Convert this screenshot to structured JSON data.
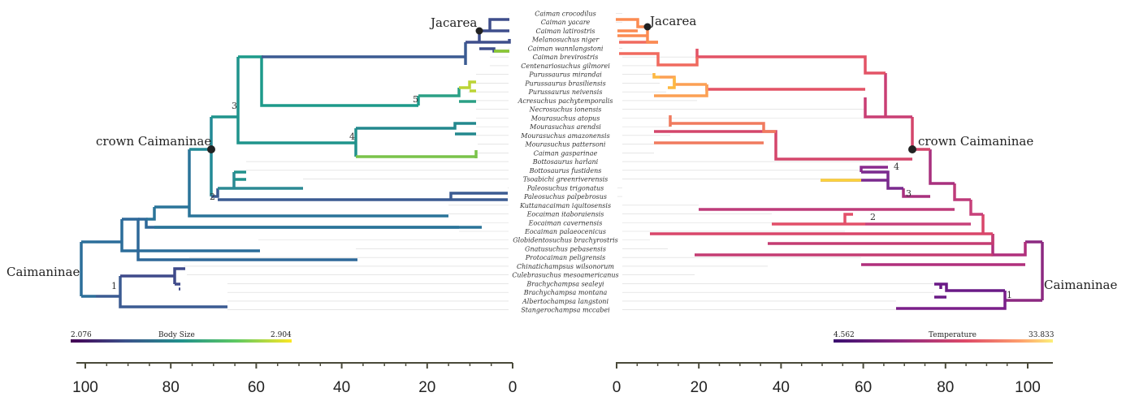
{
  "taxa": [
    "Caiman crocodilus",
    "Caiman yacare",
    "Caiman latirostris",
    "Melanosuchus niger",
    "Caiman wannlangstoni",
    "Caiman brevirostris",
    "Centenariosuchus gilmorei",
    "Purussaurus mirandai",
    "Purussaurus brasiliensis",
    "Purussaurus neivensis",
    "Acresuchus pachytemporalis",
    "Necrosuchus ionensis",
    "Mourasuchus atopus",
    "Mourasuchus arendsi",
    "Mourasuchus amazonensis",
    "Mourasuchus pattersoni",
    "Caiman gasparinae",
    "Bottosaurus harlani",
    "Bottosaurus fustidens",
    "Tsoabichi greenriverensis",
    "Paleosuchus trigonatus",
    "Paleosuchus palpebrosus",
    "Kuttanacaiman iquitosensis",
    "Eocaiman itaboraiensis",
    "Eocaiman cavernensis",
    "Eocaiman palaeocenicus",
    "Globidentosuchus brachyrostris",
    "Gnatusuchus pebasensis",
    "Protocaiman peligrensis",
    "Chinatichampsus wilsonorum",
    "Culebrasuchus mesoamericanus",
    "Brachychampsa sealeyi",
    "Brachychampsa montana",
    "Albertochampsa langstoni",
    "Stangerochampsa mccabei"
  ],
  "clade_labels": {
    "jacarea": "Jacarea",
    "crown": "crown Caimaninae",
    "caimaninae": "Caimaninae"
  },
  "left_tree": {
    "legend_title": "Body Size",
    "legend_min": "2.076",
    "legend_max": "2.904",
    "numbers": [
      "1",
      "2",
      "3",
      "4",
      "5"
    ]
  },
  "right_tree": {
    "legend_title": "Temperature",
    "legend_min": "4.562",
    "legend_max": "33.833",
    "numbers": [
      "1",
      "2",
      "3",
      "4"
    ]
  },
  "left_axis_ticks": [
    "100",
    "80",
    "60",
    "40",
    "20",
    "0"
  ],
  "right_axis_ticks": [
    "0",
    "20",
    "40",
    "60",
    "80",
    "100"
  ],
  "colors": {
    "body_size_scale": [
      "#440154",
      "#3b528b",
      "#21918c",
      "#5ec962",
      "#fde725"
    ],
    "temperature_scale": [
      "#3b0f70",
      "#8c2981",
      "#de4968",
      "#fe9f6d",
      "#fcfdbf"
    ],
    "axis": "#4a4a3a"
  }
}
